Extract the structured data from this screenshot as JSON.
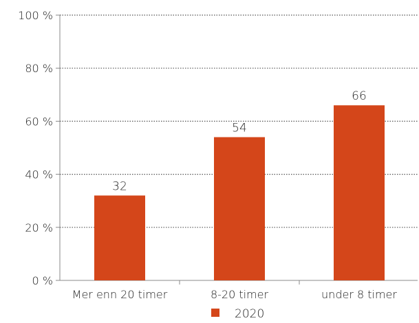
{
  "chart_data": {
    "type": "bar",
    "categories": [
      "Mer enn 20 timer",
      "8-20 timer",
      "under 8 timer"
    ],
    "series": [
      {
        "name": "2020",
        "values": [
          32,
          54,
          66
        ],
        "color": "#D4461A"
      }
    ],
    "data_labels": [
      "32",
      "54",
      "66"
    ],
    "ylim": [
      0,
      100
    ],
    "yticks": [
      0,
      20,
      40,
      60,
      80,
      100
    ],
    "ytick_labels": [
      "0 %",
      "20 %",
      "40 %",
      "60 %",
      "80 %",
      "100 %"
    ],
    "grid": true,
    "grid_style": "dotted",
    "grid_color": "#555555",
    "axis_color": "#888888",
    "legend_position": "bottom-center",
    "title": "",
    "xlabel": "",
    "ylabel": ""
  }
}
